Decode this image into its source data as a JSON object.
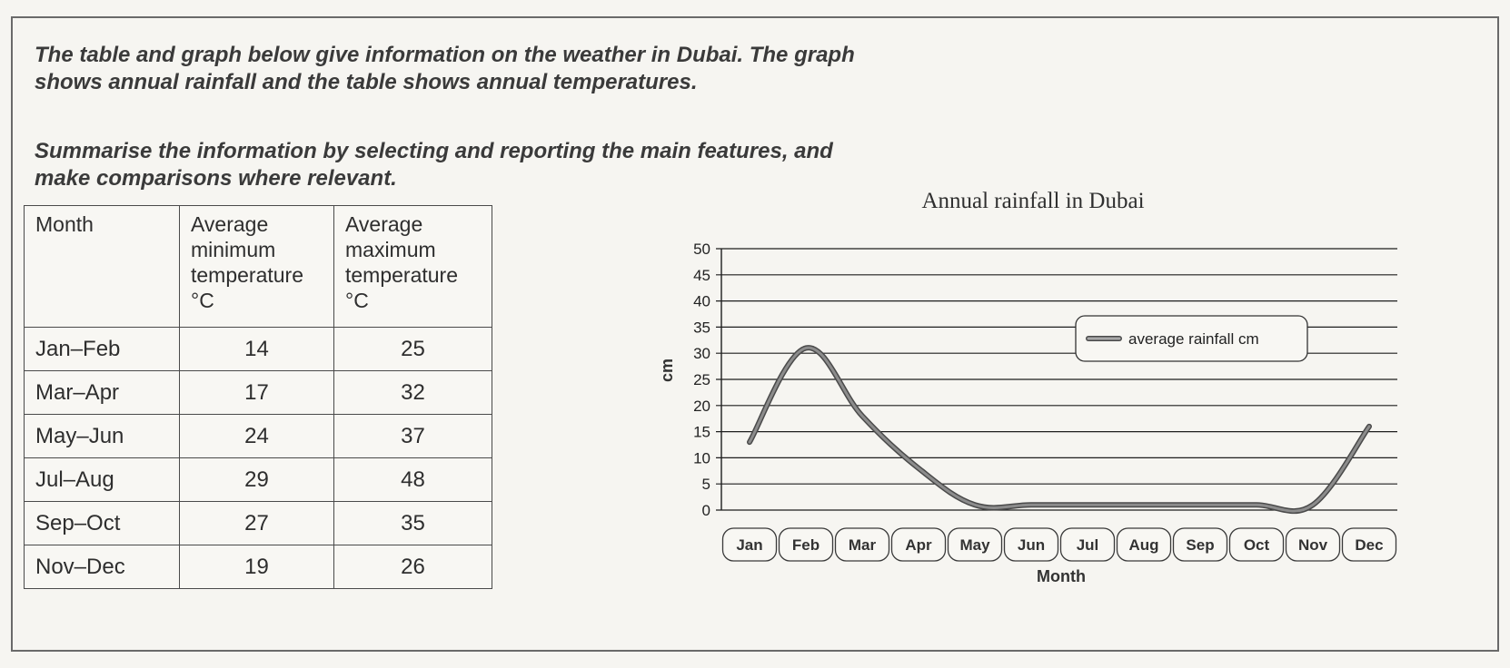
{
  "instructions": {
    "paragraph1": "The table and graph below give information on the weather in Dubai. The graph\nshows annual rainfall and the table shows annual temperatures.",
    "paragraph2": "Summarise the information by selecting and reporting the main features, and\nmake comparisons where relevant."
  },
  "table": {
    "headers": [
      "Month",
      "Average minimum temperature °C",
      "Average maximum temperature °C"
    ],
    "rows": [
      {
        "month": "Jan–Feb",
        "min": "14",
        "max": "25"
      },
      {
        "month": "Mar–Apr",
        "min": "17",
        "max": "32"
      },
      {
        "month": "May–Jun",
        "min": "24",
        "max": "37"
      },
      {
        "month": "Jul–Aug",
        "min": "29",
        "max": "48"
      },
      {
        "month": "Sep–Oct",
        "min": "27",
        "max": "35"
      },
      {
        "month": "Nov–Dec",
        "min": "19",
        "max": "26"
      }
    ]
  },
  "chart_data": {
    "type": "line",
    "title": "Annual rainfall in Dubai",
    "xlabel": "Month",
    "ylabel": "cm",
    "categories": [
      "Jan",
      "Feb",
      "Mar",
      "Apr",
      "May",
      "Jun",
      "Jul",
      "Aug",
      "Sep",
      "Oct",
      "Nov",
      "Dec"
    ],
    "series": [
      {
        "name": "average rainfall cm",
        "values": [
          13,
          31,
          18,
          8,
          1,
          1,
          1,
          1,
          1,
          1,
          1,
          16
        ]
      }
    ],
    "ylim": [
      0,
      50
    ],
    "yticks": [
      0,
      5,
      10,
      15,
      20,
      25,
      30,
      35,
      40,
      45,
      50
    ],
    "grid": true,
    "legend": "top-right",
    "colors": {
      "line": "#8c8c8c",
      "line_edge": "#4a4a4a",
      "grid": "#1e1e1e"
    }
  }
}
